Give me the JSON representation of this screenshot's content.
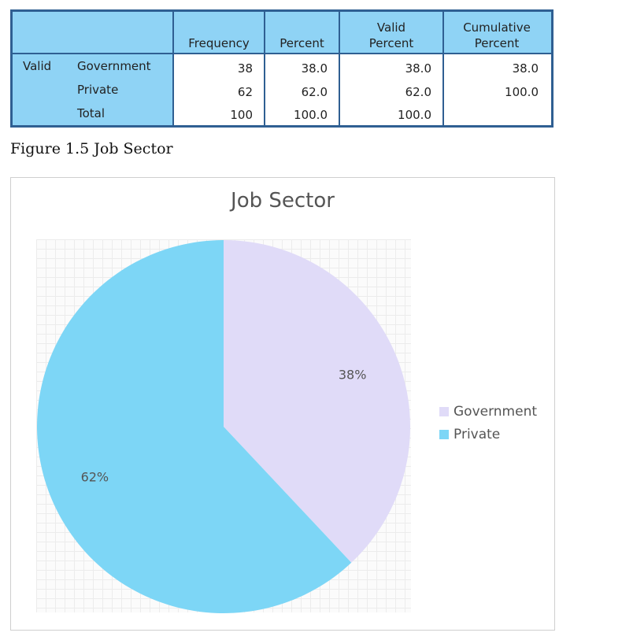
{
  "table": {
    "headers": [
      "",
      "",
      "Frequency",
      "Percent",
      "Valid\nPercent",
      "Cumulative\nPercent"
    ],
    "group_label": "Valid",
    "rows": [
      {
        "label": "Government",
        "frequency": "38",
        "percent": "38.0",
        "valid_percent": "38.0",
        "cumulative_percent": "38.0"
      },
      {
        "label": "Private",
        "frequency": "62",
        "percent": "62.0",
        "valid_percent": "62.0",
        "cumulative_percent": "100.0"
      },
      {
        "label": "Total",
        "frequency": "100",
        "percent": "100.0",
        "valid_percent": "100.0",
        "cumulative_percent": ""
      }
    ]
  },
  "caption": "Figure 1.5 Job Sector",
  "colors": {
    "header_bg": "#8fd3f5",
    "table_border": "#2f5f92",
    "government": "#e0dbf8",
    "private": "#7dd6f6"
  },
  "chart_data": {
    "type": "pie",
    "title": "Job Sector",
    "categories": [
      "Government",
      "Private"
    ],
    "values": [
      38,
      62
    ],
    "labels": [
      "38%",
      "62%"
    ],
    "colors": [
      "#e0dbf8",
      "#7dd6f6"
    ],
    "legend": "right",
    "start_angle": "12 o'clock",
    "direction": "clockwise"
  }
}
